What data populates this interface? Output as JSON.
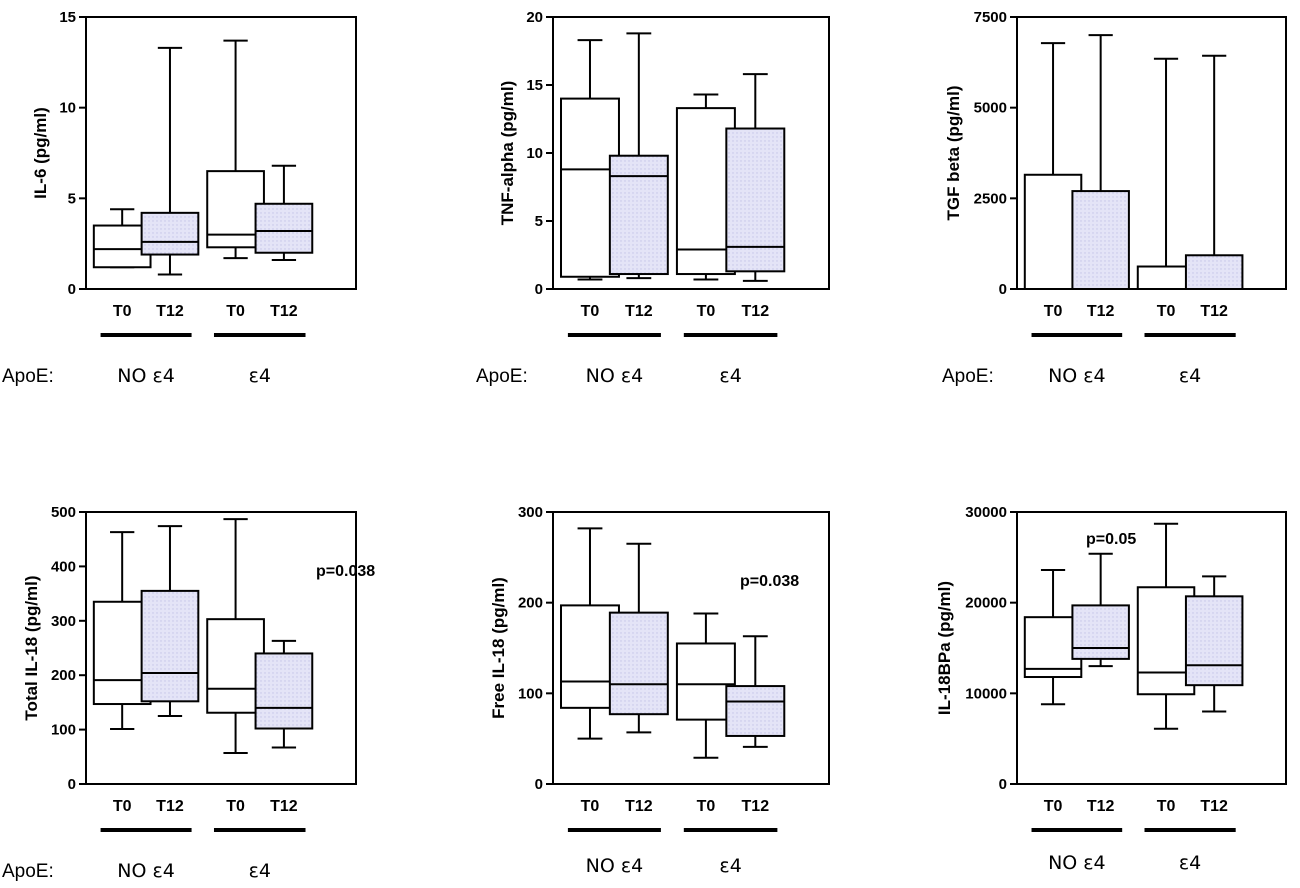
{
  "colors": {
    "t12_fill": "#e4e4f7",
    "t12_dots": "#c4c4e8",
    "t0_fill": "#ffffff",
    "ink": "#000000"
  },
  "chart_data": [
    {
      "type": "boxplot",
      "id": "il6",
      "ylabel": "IL-6 (pg/ml)",
      "ylim": [
        0,
        15
      ],
      "ticks": [
        0,
        5,
        10,
        15
      ],
      "tick_labels": [
        "0",
        "5",
        "10",
        "15"
      ],
      "categories": [
        "T0",
        "T12",
        "T0",
        "T12"
      ],
      "groups": [
        "NO ε4",
        "ε4"
      ],
      "apoe_label": "ApoE:",
      "pvalue": "",
      "boxes": [
        {
          "label": "T0",
          "group": "NO ε4",
          "min": 1.2,
          "q1": 1.2,
          "median": 2.2,
          "q3": 3.5,
          "max": 4.4
        },
        {
          "label": "T12",
          "group": "NO ε4",
          "min": 0.8,
          "q1": 1.9,
          "median": 2.6,
          "q3": 4.2,
          "max": 13.3
        },
        {
          "label": "T0",
          "group": "ε4",
          "min": 1.7,
          "q1": 2.3,
          "median": 3.0,
          "q3": 6.5,
          "max": 13.7
        },
        {
          "label": "T12",
          "group": "ε4",
          "min": 1.6,
          "q1": 2.0,
          "median": 3.2,
          "q3": 4.7,
          "max": 6.8
        }
      ]
    },
    {
      "type": "boxplot",
      "id": "tnf",
      "ylabel": "TNF-alpha (pg/ml)",
      "ylim": [
        0,
        20
      ],
      "ticks": [
        0,
        5,
        10,
        15,
        20
      ],
      "tick_labels": [
        "0",
        "5",
        "10",
        "15",
        "20"
      ],
      "categories": [
        "T0",
        "T12",
        "T0",
        "T12"
      ],
      "groups": [
        "NO ε4",
        "ε4"
      ],
      "apoe_label": "ApoE:",
      "pvalue": "",
      "boxes": [
        {
          "label": "T0",
          "group": "NO ε4",
          "min": 0.7,
          "q1": 0.9,
          "median": 8.8,
          "q3": 14.0,
          "max": 18.3
        },
        {
          "label": "T12",
          "group": "NO ε4",
          "min": 0.8,
          "q1": 1.1,
          "median": 8.3,
          "q3": 9.8,
          "max": 18.8
        },
        {
          "label": "T0",
          "group": "ε4",
          "min": 0.7,
          "q1": 1.1,
          "median": 2.9,
          "q3": 13.3,
          "max": 14.3
        },
        {
          "label": "T12",
          "group": "ε4",
          "min": 0.6,
          "q1": 1.3,
          "median": 3.1,
          "q3": 11.8,
          "max": 15.8
        }
      ]
    },
    {
      "type": "boxplot",
      "id": "tgf",
      "ylabel": "TGF beta (pg/ml)",
      "ylim": [
        0,
        7500
      ],
      "ticks": [
        0,
        2500,
        5000,
        7500
      ],
      "tick_labels": [
        "0",
        "2500",
        "5000",
        "7500"
      ],
      "categories": [
        "T0",
        "T12",
        "T0",
        "T12"
      ],
      "groups": [
        "NO ε4",
        "ε4"
      ],
      "apoe_label": "ApoE:",
      "pvalue": "",
      "boxes": [
        {
          "label": "T0",
          "group": "NO ε4",
          "min": 0,
          "q1": 0,
          "median": 0,
          "q3": 3150,
          "max": 6780
        },
        {
          "label": "T12",
          "group": "NO ε4",
          "min": 0,
          "q1": 0,
          "median": 0,
          "q3": 2700,
          "max": 7000
        },
        {
          "label": "T0",
          "group": "ε4",
          "min": 0,
          "q1": 0,
          "median": 0,
          "q3": 620,
          "max": 6350
        },
        {
          "label": "T12",
          "group": "ε4",
          "min": 0,
          "q1": 0,
          "median": 0,
          "q3": 930,
          "max": 6430
        }
      ]
    },
    {
      "type": "boxplot",
      "id": "total-il18",
      "ylabel": "Total IL-18 (pg/ml)",
      "ylim": [
        0,
        500
      ],
      "ticks": [
        0,
        100,
        200,
        300,
        400,
        500
      ],
      "tick_labels": [
        "0",
        "100",
        "200",
        "300",
        "400",
        "500"
      ],
      "categories": [
        "T0",
        "T12",
        "T0",
        "T12"
      ],
      "groups": [
        "NO ε4",
        "ε4"
      ],
      "apoe_label": "ApoE:",
      "pvalue": "p=0.038",
      "boxes": [
        {
          "label": "T0",
          "group": "NO ε4",
          "min": 101,
          "q1": 147,
          "median": 191,
          "q3": 335,
          "max": 463
        },
        {
          "label": "T12",
          "group": "NO ε4",
          "min": 125,
          "q1": 152,
          "median": 204,
          "q3": 355,
          "max": 474
        },
        {
          "label": "T0",
          "group": "ε4",
          "min": 57,
          "q1": 131,
          "median": 175,
          "q3": 303,
          "max": 487
        },
        {
          "label": "T12",
          "group": "ε4",
          "min": 67,
          "q1": 102,
          "median": 140,
          "q3": 240,
          "max": 263
        }
      ]
    },
    {
      "type": "boxplot",
      "id": "free-il18",
      "ylabel": "Free IL-18 (pg/ml)",
      "ylim": [
        0,
        300
      ],
      "ticks": [
        0,
        100,
        200,
        300
      ],
      "tick_labels": [
        "0",
        "100",
        "200",
        "300"
      ],
      "categories": [
        "T0",
        "T12",
        "T0",
        "T12"
      ],
      "groups": [
        "NO ε4",
        "ε4"
      ],
      "apoe_label": "",
      "pvalue": "p=0.038",
      "boxes": [
        {
          "label": "T0",
          "group": "NO ε4",
          "min": 50,
          "q1": 84,
          "median": 113,
          "q3": 197,
          "max": 282
        },
        {
          "label": "T12",
          "group": "NO ε4",
          "min": 57,
          "q1": 77,
          "median": 110,
          "q3": 189,
          "max": 265
        },
        {
          "label": "T0",
          "group": "ε4",
          "min": 29,
          "q1": 71,
          "median": 110,
          "q3": 155,
          "max": 188
        },
        {
          "label": "T12",
          "group": "ε4",
          "min": 41,
          "q1": 53,
          "median": 91,
          "q3": 108,
          "max": 163
        }
      ]
    },
    {
      "type": "boxplot",
      "id": "il18bpa",
      "ylabel": "IL-18BPa (pg/ml)",
      "ylim": [
        0,
        30000
      ],
      "ticks": [
        0,
        10000,
        20000,
        30000
      ],
      "tick_labels": [
        "0",
        "10000",
        "20000",
        "30000"
      ],
      "categories": [
        "T0",
        "T12",
        "T0",
        "T12"
      ],
      "groups": [
        "NO ε4",
        "ε4"
      ],
      "apoe_label": "",
      "pvalue": "p=0.05",
      "boxes": [
        {
          "label": "T0",
          "group": "NO ε4",
          "min": 8800,
          "q1": 11800,
          "median": 12700,
          "q3": 18400,
          "max": 23600
        },
        {
          "label": "T12",
          "group": "NO ε4",
          "min": 13000,
          "q1": 13800,
          "median": 15000,
          "q3": 19700,
          "max": 25400
        },
        {
          "label": "T0",
          "group": "ε4",
          "min": 6100,
          "q1": 9900,
          "median": 12300,
          "q3": 21700,
          "max": 28700
        },
        {
          "label": "T12",
          "group": "ε4",
          "min": 8000,
          "q1": 10900,
          "median": 13100,
          "q3": 20700,
          "max": 22900
        }
      ]
    }
  ]
}
